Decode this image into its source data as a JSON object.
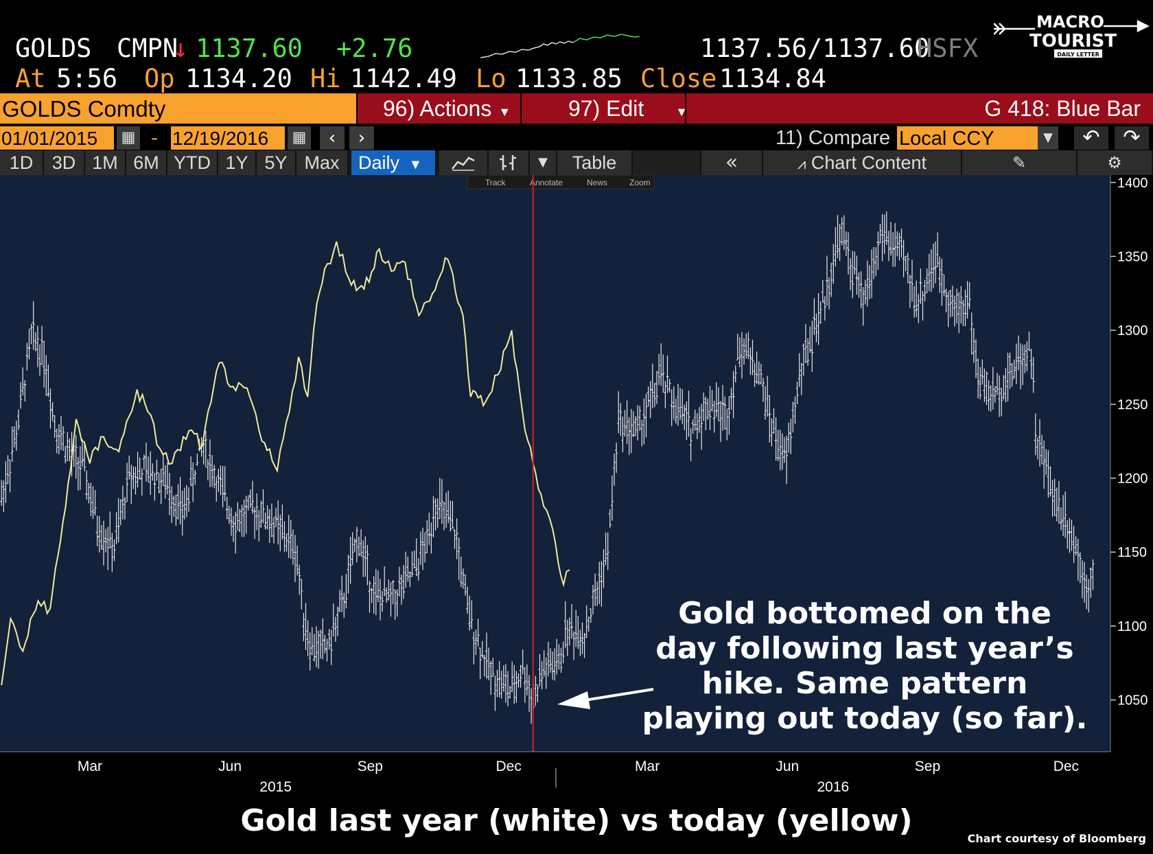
{
  "quote": {
    "ticker": "GOLDS",
    "source": "CMPN",
    "direction_arrow": "↓",
    "last": "1137.60",
    "change": "+2.76",
    "bid_ask": "1137.56/1137.60",
    "venue": "HSFX",
    "at_label": "At",
    "time": "5:56",
    "open_label": "Op",
    "open": "1134.20",
    "high_label": "Hi",
    "high": "1142.49",
    "low_label": "Lo",
    "low": "1133.85",
    "close_label": "Close",
    "close": "1134.84"
  },
  "logo": {
    "line1": "MACRO",
    "line2": "TOURIST",
    "tagline": "DAILY LETTER"
  },
  "toolbar": {
    "security": "GOLDS Comdty",
    "actions": "96) Actions",
    "edit": "97) Edit",
    "chart_name": "G 418: Blue Bar",
    "start_date": "01/01/2015",
    "date_sep": "-",
    "end_date": "12/19/2016",
    "compare": "11) Compare",
    "currency": "Local CCY",
    "periods": [
      "1D",
      "3D",
      "1M",
      "6M",
      "YTD",
      "1Y",
      "5Y",
      "Max"
    ],
    "frequency": "Daily",
    "table": "Table",
    "chart_content": "Chart Content",
    "mini_tools": [
      "Track",
      "Annotate",
      "News",
      "Zoom"
    ]
  },
  "colors": {
    "chart_bg": "#13213a",
    "white_series": "#e8e8e8",
    "yellow_series": "#f3ec9a",
    "marker": "#d4202a",
    "accent_orange": "#f9a12d",
    "bar_red": "#9a0e1c"
  },
  "chart_data": {
    "type": "line",
    "y_ticks": [
      1400,
      1350,
      1300,
      1250,
      1200,
      1150,
      1100,
      1050
    ],
    "ylim": [
      1015,
      1405
    ],
    "x_month_labels": [
      "Mar",
      "Jun",
      "Sep",
      "Dec",
      "Mar",
      "Jun",
      "Sep",
      "Dec"
    ],
    "x_year_labels": [
      "2015",
      "2016"
    ],
    "grid": false,
    "legend": "none",
    "series": [
      {
        "color": "white",
        "points": [
          [
            "2015-01-02",
            1187
          ],
          [
            "2015-01-12",
            1232
          ],
          [
            "2015-01-22",
            1298
          ],
          [
            "2015-01-30",
            1283
          ],
          [
            "2015-02-06",
            1237
          ],
          [
            "2015-02-16",
            1216
          ],
          [
            "2015-02-25",
            1206
          ],
          [
            "2015-03-06",
            1168
          ],
          [
            "2015-03-17",
            1152
          ],
          [
            "2015-03-27",
            1202
          ],
          [
            "2015-04-08",
            1205
          ],
          [
            "2015-04-20",
            1197
          ],
          [
            "2015-05-01",
            1176
          ],
          [
            "2015-05-14",
            1223
          ],
          [
            "2015-05-26",
            1192
          ],
          [
            "2015-06-05",
            1170
          ],
          [
            "2015-06-17",
            1180
          ],
          [
            "2015-07-01",
            1168
          ],
          [
            "2015-07-14",
            1152
          ],
          [
            "2015-07-20",
            1105
          ],
          [
            "2015-07-24",
            1085
          ],
          [
            "2015-08-05",
            1087
          ],
          [
            "2015-08-14",
            1115
          ],
          [
            "2015-08-24",
            1162
          ],
          [
            "2015-09-04",
            1120
          ],
          [
            "2015-09-16",
            1119
          ],
          [
            "2015-09-28",
            1134
          ],
          [
            "2015-10-09",
            1158
          ],
          [
            "2015-10-14",
            1185
          ],
          [
            "2015-10-27",
            1163
          ],
          [
            "2015-11-04",
            1110
          ],
          [
            "2015-11-18",
            1070
          ],
          [
            "2015-12-03",
            1055
          ],
          [
            "2015-12-10",
            1072
          ],
          [
            "2015-12-17",
            1050
          ],
          [
            "2015-12-24",
            1071
          ],
          [
            "2016-01-04",
            1075
          ],
          [
            "2016-01-07",
            1097
          ],
          [
            "2016-01-20",
            1095
          ],
          [
            "2016-02-04",
            1150
          ],
          [
            "2016-02-11",
            1238
          ],
          [
            "2016-02-24",
            1232
          ],
          [
            "2016-03-10",
            1270
          ],
          [
            "2016-03-18",
            1252
          ],
          [
            "2016-03-30",
            1233
          ],
          [
            "2016-04-11",
            1251
          ],
          [
            "2016-04-22",
            1242
          ],
          [
            "2016-05-02",
            1292
          ],
          [
            "2016-05-13",
            1272
          ],
          [
            "2016-05-24",
            1228
          ],
          [
            "2016-05-31",
            1210
          ],
          [
            "2016-06-10",
            1275
          ],
          [
            "2016-06-24",
            1316
          ],
          [
            "2016-07-06",
            1367
          ],
          [
            "2016-07-21",
            1318
          ],
          [
            "2016-08-02",
            1366
          ],
          [
            "2016-08-16",
            1349
          ],
          [
            "2016-08-26",
            1318
          ],
          [
            "2016-09-06",
            1348
          ],
          [
            "2016-09-19",
            1313
          ],
          [
            "2016-09-28",
            1322
          ],
          [
            "2016-10-04",
            1268
          ],
          [
            "2016-10-14",
            1255
          ],
          [
            "2016-10-28",
            1275
          ],
          [
            "2016-11-08",
            1290
          ],
          [
            "2016-11-11",
            1230
          ],
          [
            "2016-11-24",
            1185
          ],
          [
            "2016-12-02",
            1172
          ],
          [
            "2016-12-15",
            1128
          ],
          [
            "2016-12-19",
            1137
          ]
        ]
      },
      {
        "color": "yellow",
        "points": [
          [
            "2015-01-02",
            1060
          ],
          [
            "2015-01-08",
            1105
          ],
          [
            "2015-01-16",
            1083
          ],
          [
            "2015-01-26",
            1117
          ],
          [
            "2015-02-03",
            1112
          ],
          [
            "2015-02-13",
            1180
          ],
          [
            "2015-02-20",
            1240
          ],
          [
            "2015-03-01",
            1210
          ],
          [
            "2015-03-10",
            1228
          ],
          [
            "2015-03-20",
            1218
          ],
          [
            "2015-04-01",
            1260
          ],
          [
            "2015-04-08",
            1245
          ],
          [
            "2015-04-16",
            1220
          ],
          [
            "2015-04-24",
            1210
          ],
          [
            "2015-05-05",
            1232
          ],
          [
            "2015-05-14",
            1222
          ],
          [
            "2015-05-25",
            1278
          ],
          [
            "2015-06-03",
            1262
          ],
          [
            "2015-06-14",
            1255
          ],
          [
            "2015-06-22",
            1225
          ],
          [
            "2015-07-02",
            1205
          ],
          [
            "2015-07-08",
            1238
          ],
          [
            "2015-07-16",
            1282
          ],
          [
            "2015-07-22",
            1255
          ],
          [
            "2015-07-28",
            1318
          ],
          [
            "2015-08-04",
            1345
          ],
          [
            "2015-08-10",
            1360
          ],
          [
            "2015-08-18",
            1335
          ],
          [
            "2015-08-28",
            1328
          ],
          [
            "2015-09-07",
            1355
          ],
          [
            "2015-09-15",
            1340
          ],
          [
            "2015-09-24",
            1346
          ],
          [
            "2015-10-03",
            1310
          ],
          [
            "2015-10-12",
            1325
          ],
          [
            "2015-10-22",
            1348
          ],
          [
            "2015-11-01",
            1310
          ],
          [
            "2015-11-06",
            1255
          ],
          [
            "2015-11-16",
            1252
          ],
          [
            "2015-11-24",
            1270
          ],
          [
            "2015-12-03",
            1300
          ],
          [
            "2015-12-10",
            1245
          ],
          [
            "2015-12-17",
            1210
          ],
          [
            "2015-12-24",
            1181
          ],
          [
            "2015-12-30",
            1165
          ],
          [
            "2016-01-06",
            1128
          ],
          [
            "2016-01-10",
            1138
          ]
        ]
      }
    ],
    "marker_date": "2015-12-17",
    "annotation": "Gold bottomed on the day following last year’s hike.  Same pattern playing out today (so far)."
  },
  "annotation": {
    "line1": "Gold bottomed on the",
    "line2": "day following last year’s",
    "line3": "hike.  Same pattern",
    "line4": "playing out today (so far)."
  },
  "caption": "Gold last year (white) vs today (yellow)",
  "credit": "Chart courtesy of Bloomberg"
}
